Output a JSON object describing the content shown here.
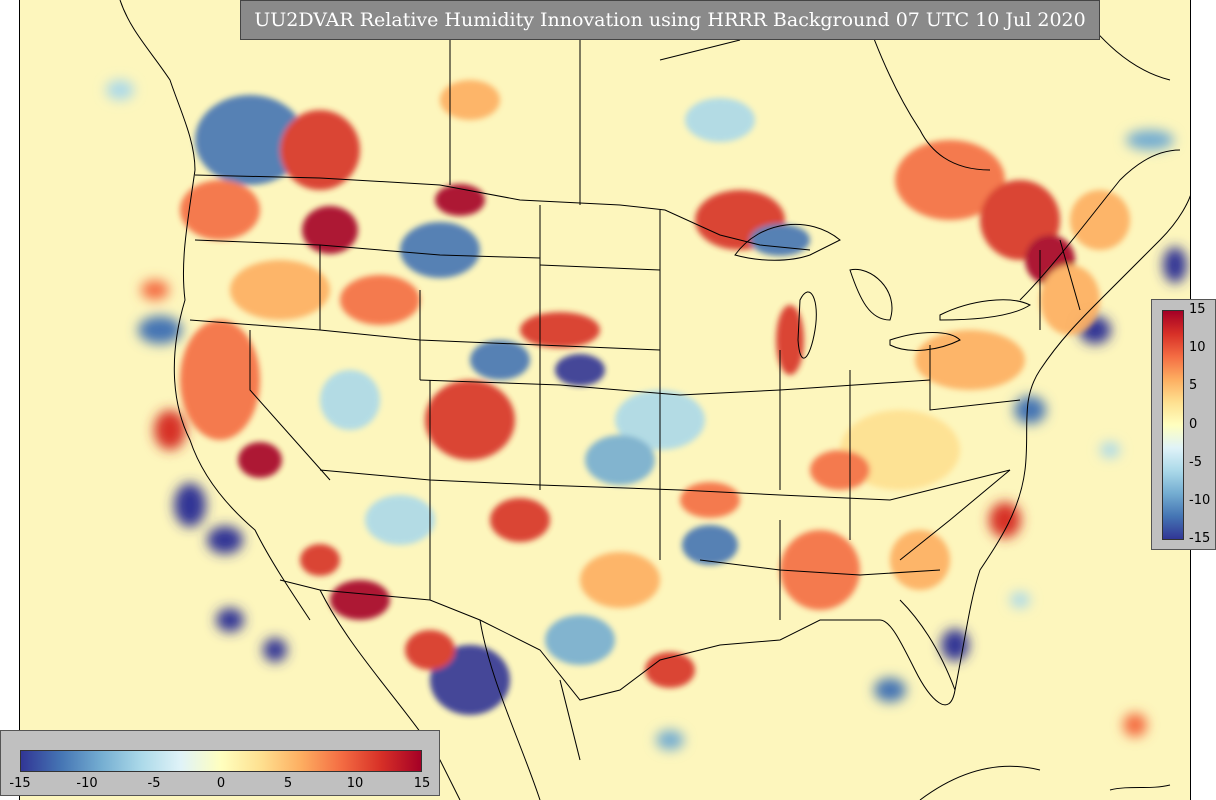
{
  "title": "UU2DVAR Relative Humidity Innovation using HRRR Background 07 UTC 10 Jul 2020",
  "colorbar": {
    "min": -15,
    "max": 15,
    "right_ticks": [
      "15",
      "10",
      "5",
      "0",
      "-5",
      "-10",
      "-15"
    ],
    "bottom_ticks": [
      "-15",
      "-10",
      "-5",
      "0",
      "5",
      "10",
      "15"
    ],
    "colors": [
      "#313695",
      "#4575b4",
      "#74add1",
      "#abd9e9",
      "#e0f3f8",
      "#ffffbf",
      "#fee090",
      "#fdae61",
      "#f46d43",
      "#d73027",
      "#a50026"
    ]
  },
  "map": {
    "background_color": "#fdf6bd",
    "line_color": "#000000"
  }
}
